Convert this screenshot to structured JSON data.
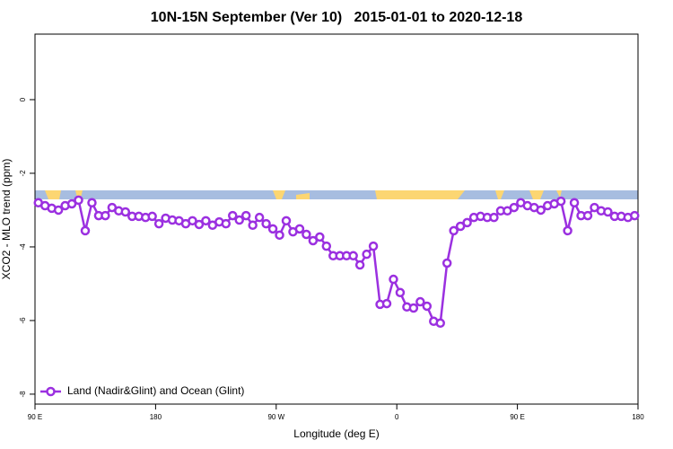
{
  "chart_data": {
    "type": "line",
    "title": "10N-15N September (Ver 10)   2015-01-01 to 2020-12-18",
    "xlabel": "Longitude (deg E)",
    "ylabel": "XCO2 - MLO trend (ppm)",
    "xlim": [
      90,
      540
    ],
    "ylim": [
      -8.27,
      1.78
    ],
    "xticks": [
      {
        "value": 90,
        "label": "90 E"
      },
      {
        "value": 180,
        "label": "180"
      },
      {
        "value": 270,
        "label": "90 W"
      },
      {
        "value": 360,
        "label": "0"
      },
      {
        "value": 450,
        "label": "90 E"
      },
      {
        "value": 540,
        "label": "180"
      }
    ],
    "yticks": [
      0,
      -2,
      -4,
      -6,
      -8
    ],
    "legend": "bottom-left",
    "x": [
      92.5,
      97.5,
      102.5,
      107.5,
      112.5,
      117.5,
      122.5,
      127.5,
      132.5,
      137.5,
      142.5,
      147.5,
      152.5,
      157.5,
      162.5,
      167.5,
      172.5,
      177.5,
      182.5,
      187.5,
      192.5,
      197.5,
      202.5,
      207.5,
      212.5,
      217.5,
      222.5,
      227.5,
      232.5,
      237.5,
      242.5,
      247.5,
      252.5,
      257.5,
      262.5,
      267.5,
      272.5,
      277.5,
      282.5,
      287.5,
      292.5,
      297.5,
      302.5,
      307.5,
      312.5,
      317.5,
      322.5,
      327.5,
      332.5,
      337.5,
      342.5,
      347.5,
      352.5,
      357.5,
      362.5,
      367.5,
      372.5,
      377.5,
      382.5,
      387.5,
      392.5,
      397.5,
      402.5,
      407.5,
      412.5,
      417.5,
      422.5,
      427.5,
      432.5,
      437.5,
      442.5,
      447.5,
      452.5,
      457.5,
      462.5,
      467.5,
      472.5,
      477.5,
      482.5,
      487.5,
      492.5,
      497.5,
      502.5,
      507.5,
      512.5,
      517.5,
      522.5,
      527.5,
      532.5,
      537.5
    ],
    "series": [
      {
        "name": "Land (Nadir&Glint) and Ocean (Glint)",
        "color": "#9b30e0",
        "values": [
          -2.8,
          -2.88,
          -2.95,
          -3.0,
          -2.88,
          -2.83,
          -2.73,
          -3.56,
          -2.8,
          -3.15,
          -3.15,
          -2.93,
          -3.02,
          -3.05,
          -3.17,
          -3.17,
          -3.2,
          -3.17,
          -3.37,
          -3.22,
          -3.27,
          -3.29,
          -3.37,
          -3.29,
          -3.39,
          -3.29,
          -3.41,
          -3.32,
          -3.37,
          -3.15,
          -3.27,
          -3.15,
          -3.41,
          -3.2,
          -3.37,
          -3.51,
          -3.68,
          -3.29,
          -3.59,
          -3.51,
          -3.66,
          -3.83,
          -3.73,
          -3.98,
          -4.24,
          -4.24,
          -4.24,
          -4.24,
          -4.49,
          -4.2,
          -3.98,
          -5.56,
          -5.54,
          -4.88,
          -5.24,
          -5.63,
          -5.66,
          -5.49,
          -5.61,
          -6.02,
          -6.07,
          -4.44,
          -3.56,
          -3.44,
          -3.34,
          -3.2,
          -3.17,
          -3.2,
          -3.2,
          -3.02,
          -3.02,
          -2.93,
          -2.8,
          -2.88,
          -2.93,
          -3.0,
          -2.88,
          -2.83,
          -2.76,
          -3.56,
          -2.8,
          -3.15,
          -3.15,
          -2.93,
          -3.02,
          -3.05,
          -3.17,
          -3.17,
          -3.2,
          -3.15
        ]
      }
    ]
  }
}
